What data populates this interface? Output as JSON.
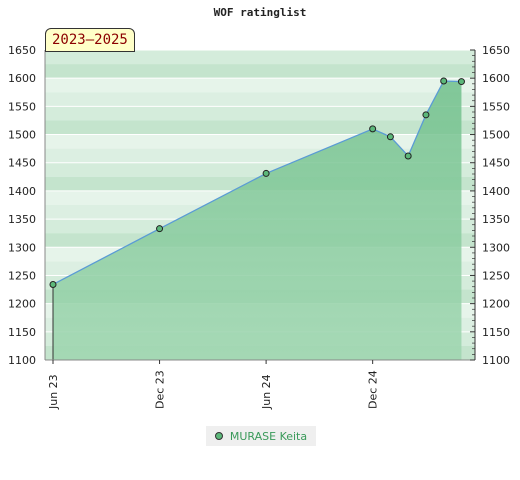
{
  "chart_data": {
    "type": "area",
    "title": "WOF ratinglist",
    "period_label": "2023–2025",
    "ylim": [
      1100,
      1650
    ],
    "y_ticks": [
      1100,
      1150,
      1200,
      1250,
      1300,
      1350,
      1400,
      1450,
      1500,
      1550,
      1600,
      1650
    ],
    "x_ticks": [
      {
        "label": "Jun 23",
        "month": 0
      },
      {
        "label": "Dec 23",
        "month": 6
      },
      {
        "label": "Jun 24",
        "month": 12
      },
      {
        "label": "Dec 24",
        "month": 18
      }
    ],
    "x_end_month": 23.2,
    "grid": true,
    "legend_position": "bottom-center",
    "series": [
      {
        "name": "MURASE Keita",
        "color": "#5cb87a",
        "points": [
          {
            "month": 0,
            "value": 1234
          },
          {
            "month": 6,
            "value": 1333
          },
          {
            "month": 12,
            "value": 1431
          },
          {
            "month": 18,
            "value": 1510
          },
          {
            "month": 19,
            "value": 1496
          },
          {
            "month": 20,
            "value": 1462
          },
          {
            "month": 21,
            "value": 1535
          },
          {
            "month": 22,
            "value": 1595
          },
          {
            "month": 23,
            "value": 1594
          }
        ]
      }
    ]
  }
}
